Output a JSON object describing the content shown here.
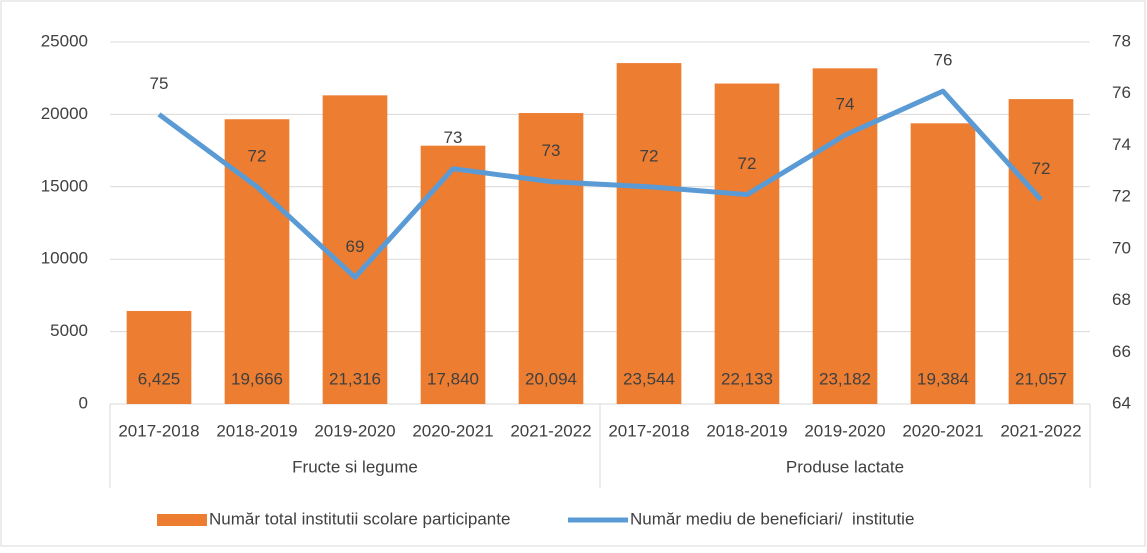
{
  "chart_data": {
    "type": "bar_line",
    "categories": [
      "2017-2018",
      "2018-2019",
      "2019-2020",
      "2020-2021",
      "2021-2022",
      "2017-2018",
      "2018-2019",
      "2019-2020",
      "2020-2021",
      "2021-2022"
    ],
    "groups": [
      "Fructe si legume",
      "Produse lactate"
    ],
    "series": [
      {
        "name": "Număr total institutii scolare participante",
        "type": "bar",
        "color": "#ed7d31",
        "values": [
          6425,
          19666,
          21316,
          17840,
          20094,
          23544,
          22133,
          23182,
          19384,
          21057
        ],
        "value_labels": [
          "6,425",
          "19,666",
          "21,316",
          "17,840",
          "20,094",
          "23,544",
          "22,133",
          "23,182",
          "19,384",
          "21,057"
        ]
      },
      {
        "name": "Număr mediu de beneficiari/  institutie",
        "type": "line",
        "color": "#5b9bd5",
        "axis": "y2",
        "values": [
          75.2,
          72.4,
          68.9,
          73.1,
          72.6,
          72.4,
          72.1,
          74.4,
          76.1,
          71.9
        ],
        "value_labels": [
          "75",
          "72",
          "69",
          "73",
          "73",
          "72",
          "72",
          "74",
          "76",
          "72"
        ]
      }
    ],
    "ylim": [
      0,
      25000
    ],
    "yticks": [
      0,
      5000,
      10000,
      15000,
      20000,
      25000
    ],
    "y2lim": [
      64,
      78
    ],
    "y2ticks": [
      64,
      66,
      68,
      70,
      72,
      74,
      76,
      78
    ],
    "grid": true,
    "legend": "bottom"
  }
}
